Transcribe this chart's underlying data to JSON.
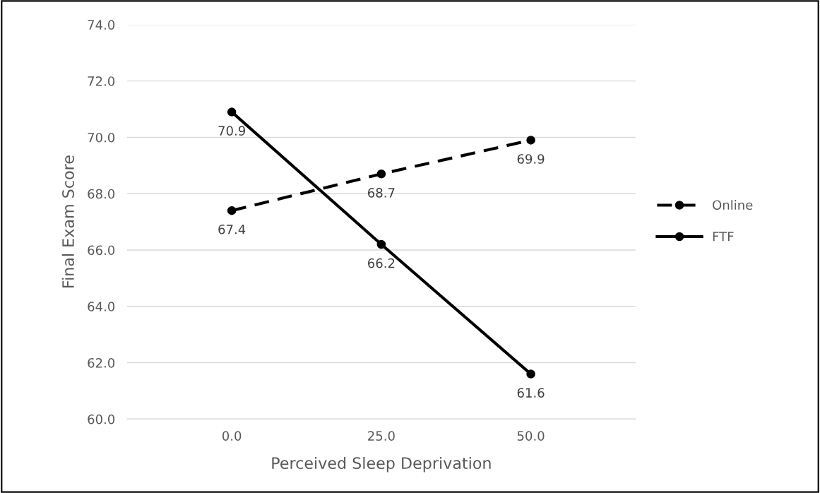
{
  "chart_data": {
    "type": "line",
    "xlabel": "Perceived Sleep Deprivation",
    "ylabel": "Final Exam Score",
    "categories": [
      "0.0",
      "25.0",
      "50.0"
    ],
    "series": [
      {
        "name": "Online",
        "color": "#000000",
        "values": [
          67.4,
          68.7,
          69.9
        ],
        "line_style": "dashed"
      },
      {
        "name": "FTF",
        "color": "#000000",
        "values": [
          70.9,
          66.2,
          61.6
        ],
        "line_style": "solid"
      }
    ],
    "ylim": [
      60,
      74
    ],
    "yticks": [
      {
        "value": 60,
        "label": "60.0"
      },
      {
        "value": 62,
        "label": "62.0"
      },
      {
        "value": 64,
        "label": "64.0"
      },
      {
        "value": 66,
        "label": "66.0"
      },
      {
        "value": 68,
        "label": "68.0"
      },
      {
        "value": 70,
        "label": "70.0"
      },
      {
        "value": 72,
        "label": "72.0"
      },
      {
        "value": 74,
        "label": "74.0"
      }
    ],
    "grid": "y",
    "legend": "right",
    "marker": "circle",
    "data_labels": true
  }
}
